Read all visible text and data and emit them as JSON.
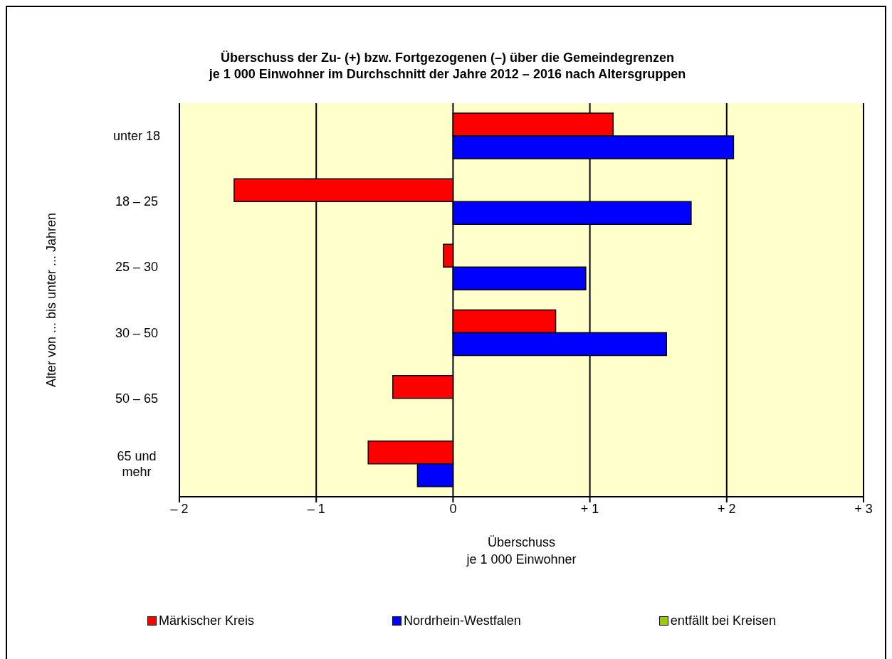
{
  "chart_data": {
    "type": "bar",
    "orientation": "horizontal",
    "title": "Überschuss der Zu- (+) bzw. Fortgezogenen (–) über die Gemeindegrenzen\nje 1 000 Einwohner im Durchschnitt der Jahre 2012 – 2016 nach Altersgruppen",
    "xlabel": "Überschuss\nje 1 000 Einwohner",
    "ylabel": "Alter von ... bis unter ... Jahren",
    "categories": [
      "unter 18",
      "18 – 25",
      "25 – 30",
      "30 – 50",
      "50 – 65",
      "65 und mehr"
    ],
    "series": [
      {
        "name": "Märkischer Kreis",
        "color": "#ff0000",
        "values": [
          1.17,
          -1.6,
          -0.07,
          0.75,
          -0.44,
          -0.62
        ]
      },
      {
        "name": "Nordrhein-Westfalen",
        "color": "#0000ff",
        "values": [
          2.05,
          1.74,
          0.97,
          1.56,
          0,
          -0.26
        ]
      },
      {
        "name": "entfällt bei Kreisen",
        "color": "#99cc00",
        "values": [
          null,
          null,
          null,
          null,
          null,
          null
        ]
      }
    ],
    "xlim": [
      -2,
      3
    ],
    "xticks": [
      {
        "value": -2,
        "label": "– 2"
      },
      {
        "value": -1,
        "label": "– 1"
      },
      0,
      {
        "value": 1,
        "label": "+ 1"
      },
      {
        "value": 2,
        "label": "+ 2"
      },
      {
        "value": 3,
        "label": "+ 3"
      }
    ],
    "grid": "x",
    "legend": "bottom"
  }
}
